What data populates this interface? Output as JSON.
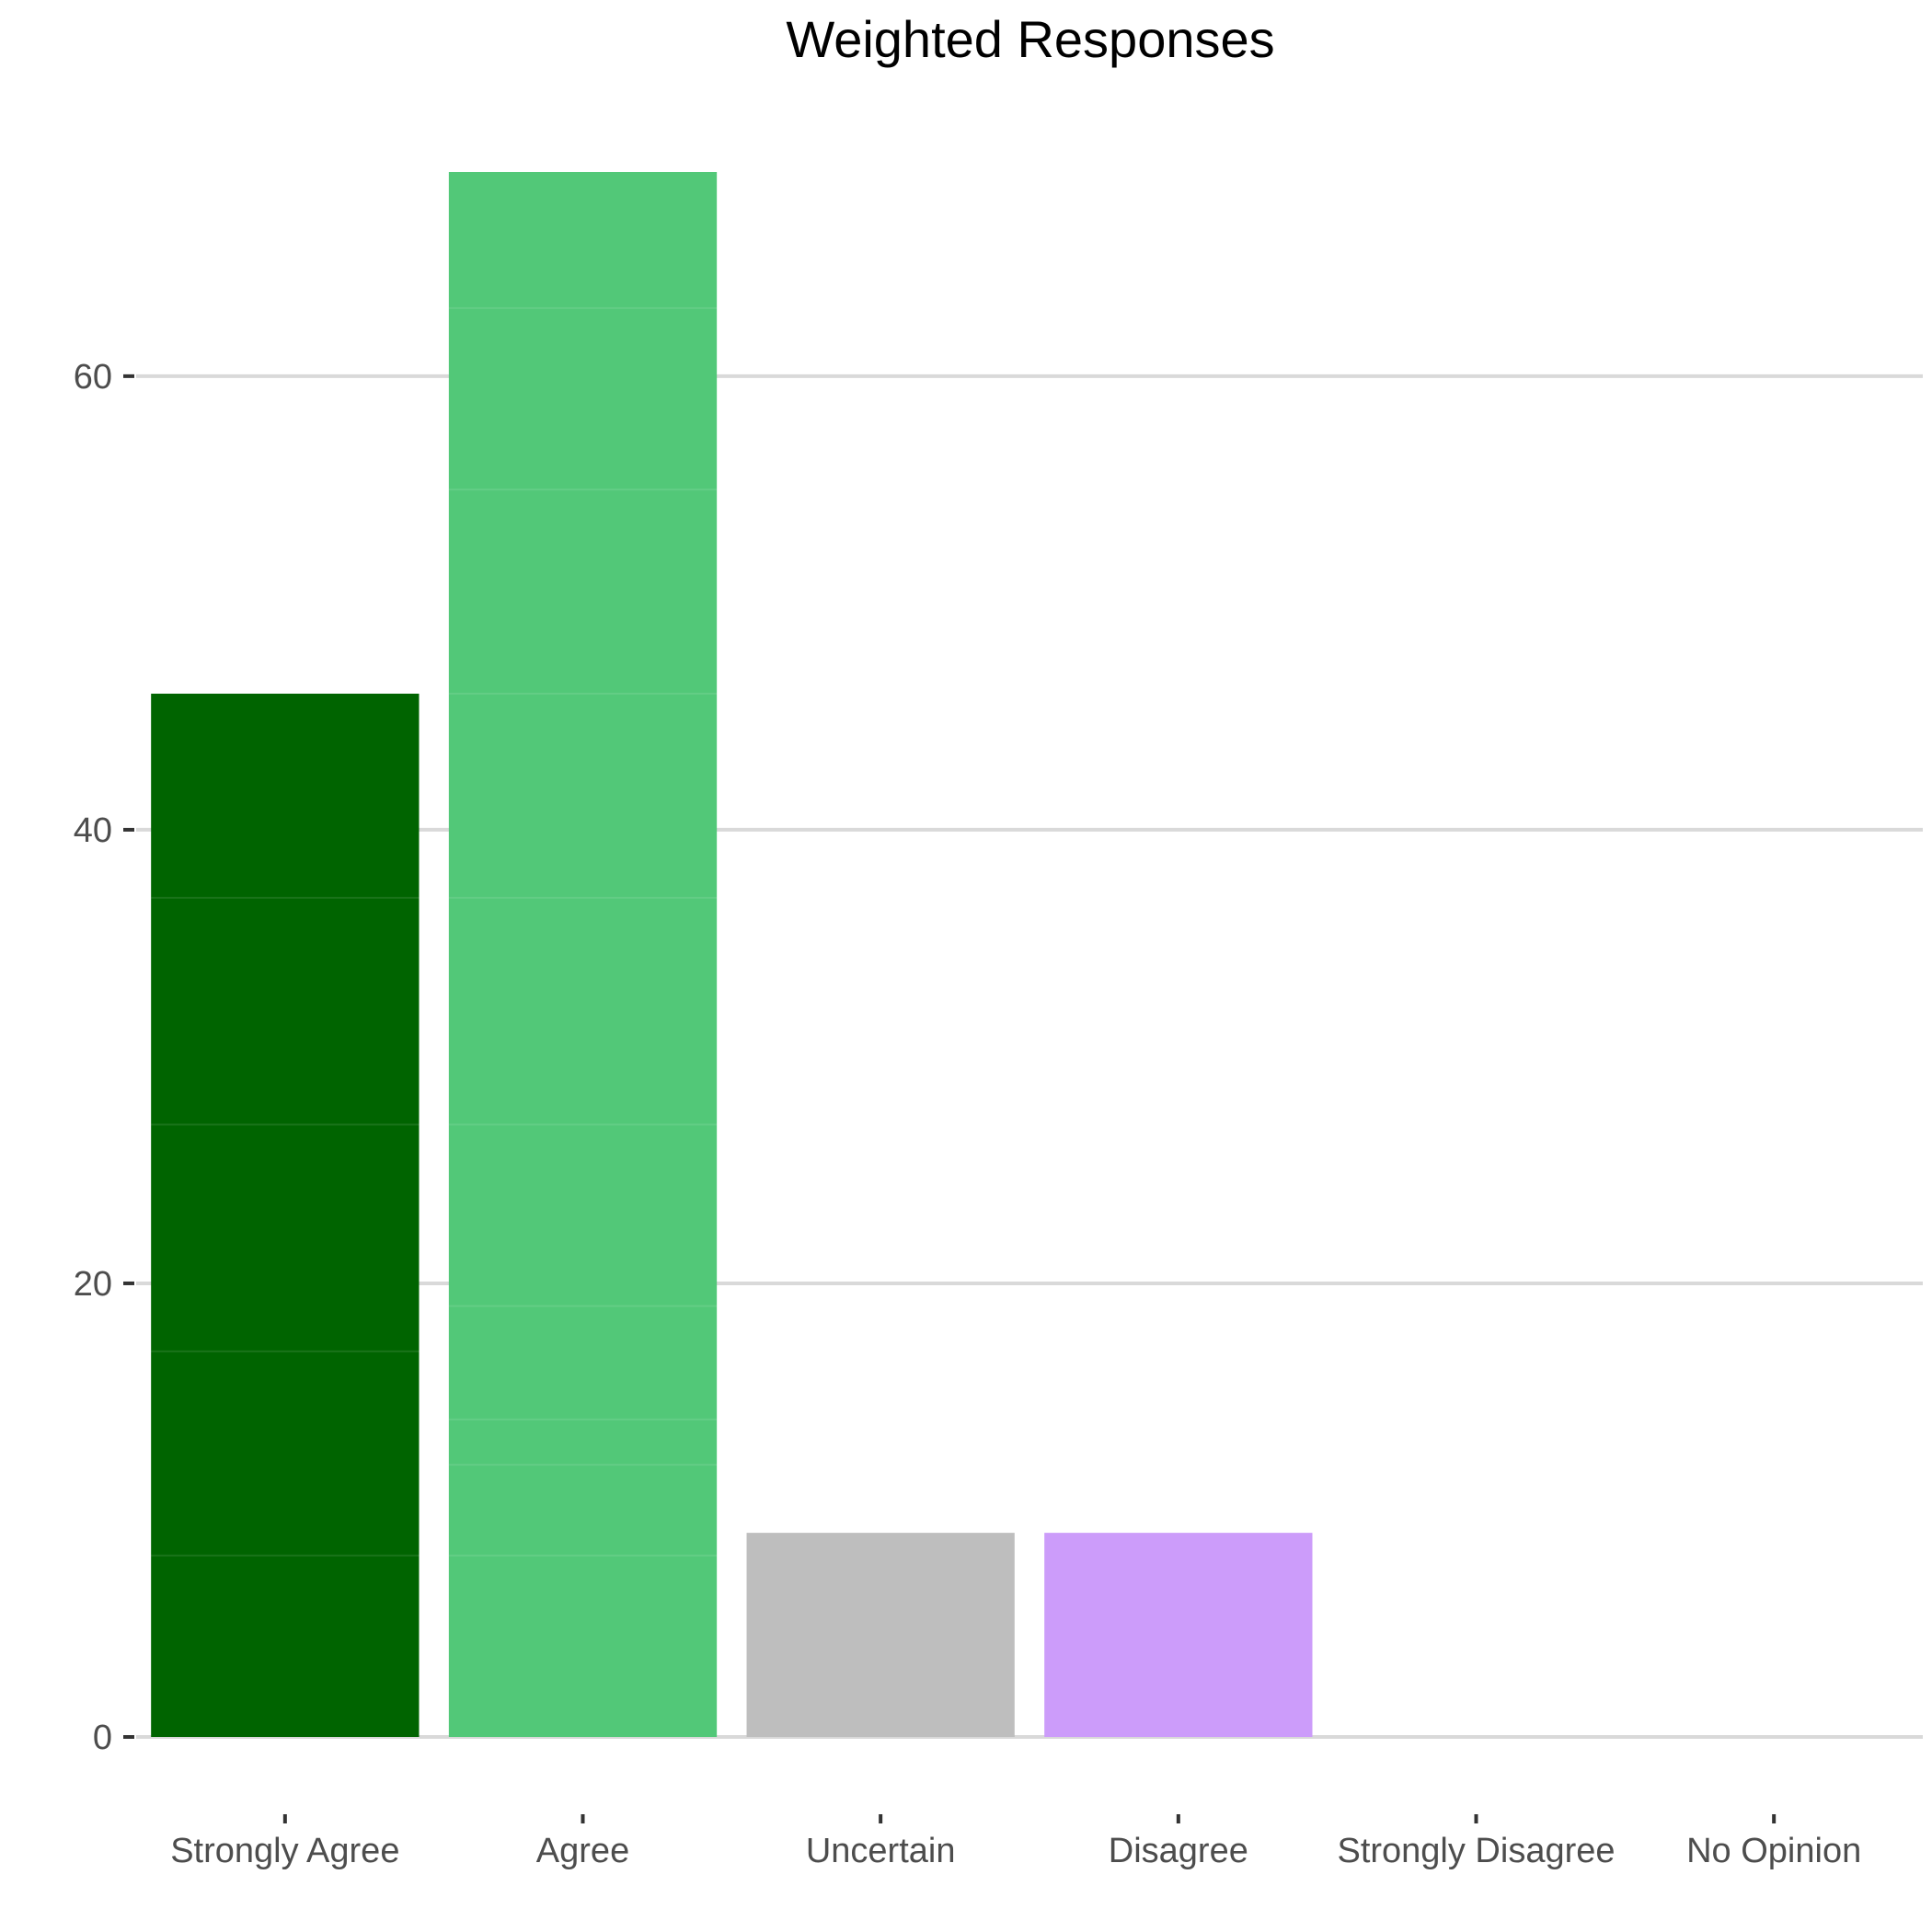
{
  "chart_data": {
    "type": "bar",
    "title": "Weighted Responses",
    "xlabel": "",
    "ylabel": "",
    "categories": [
      "Strongly Agree",
      "Agree",
      "Uncertain",
      "Disagree",
      "Strongly Disagree",
      "No Opinion"
    ],
    "values": [
      46,
      69,
      9,
      9,
      0,
      0
    ],
    "colors": [
      "#006400",
      "#52c878",
      "#bebebe",
      "#cc9cfa",
      "#cccccc",
      "#cccccc"
    ],
    "segments": [
      [
        8,
        17,
        27,
        37,
        46
      ],
      [
        8,
        12,
        14,
        19,
        27,
        37,
        46,
        55,
        63,
        69
      ],
      [
        9
      ],
      [
        9
      ],
      [],
      []
    ],
    "yticks": [
      0,
      20,
      40,
      60
    ],
    "ylim": [
      0,
      69
    ],
    "grid": true,
    "legend": "none"
  }
}
